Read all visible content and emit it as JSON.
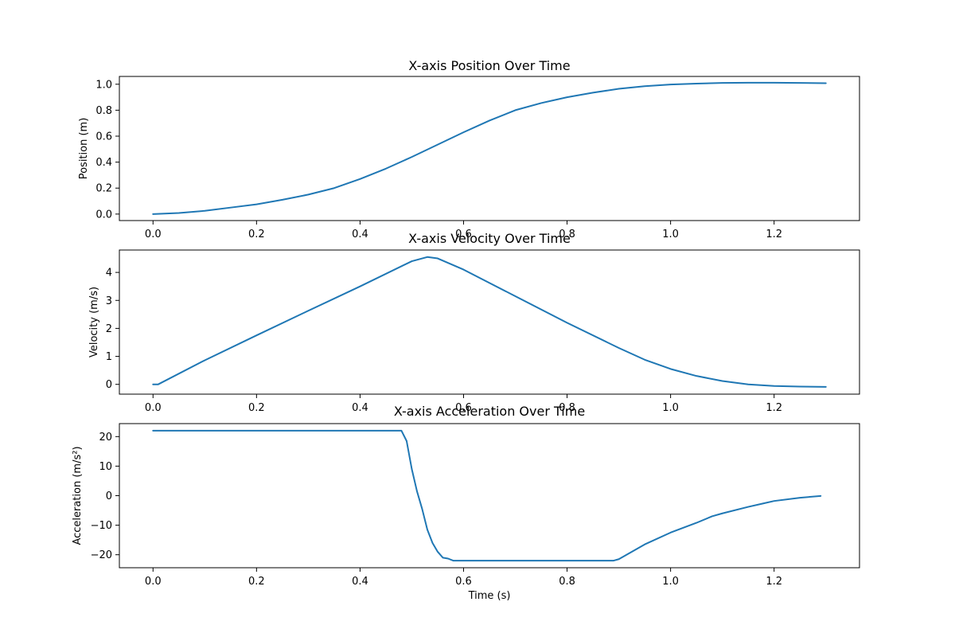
{
  "style": {
    "line_color": "#1f77b4",
    "background": "#ffffff",
    "axes_color": "#000000"
  },
  "chart_data": [
    {
      "type": "line",
      "title": "X-axis Position Over Time",
      "xlabel": "",
      "ylabel": "Position (m)",
      "xlim": [
        -0.065,
        1.365
      ],
      "ylim": [
        -0.05,
        1.06
      ],
      "xticks": [
        0.0,
        0.2,
        0.4,
        0.6,
        0.8,
        1.0,
        1.2
      ],
      "xtick_labels": [
        "0.0",
        "0.2",
        "0.4",
        "0.6",
        "0.8",
        "1.0",
        "1.2"
      ],
      "yticks": [
        0.0,
        0.2,
        0.4,
        0.6,
        0.8,
        1.0
      ],
      "ytick_labels": [
        "0.0",
        "0.2",
        "0.4",
        "0.6",
        "0.8",
        "1.0"
      ],
      "grid": false,
      "series": [
        {
          "x": [
            0.0,
            0.05,
            0.1,
            0.15,
            0.2,
            0.25,
            0.3,
            0.35,
            0.4,
            0.45,
            0.5,
            0.55,
            0.6,
            0.65,
            0.7,
            0.75,
            0.8,
            0.85,
            0.9,
            0.95,
            1.0,
            1.05,
            1.1,
            1.15,
            1.2,
            1.25,
            1.3
          ],
          "y": [
            0.0,
            0.008,
            0.025,
            0.05,
            0.075,
            0.11,
            0.15,
            0.2,
            0.27,
            0.35,
            0.44,
            0.535,
            0.63,
            0.72,
            0.8,
            0.855,
            0.9,
            0.935,
            0.965,
            0.985,
            0.998,
            1.005,
            1.01,
            1.012,
            1.012,
            1.01,
            1.008
          ]
        }
      ]
    },
    {
      "type": "line",
      "title": "X-axis Velocity Over Time",
      "xlabel": "",
      "ylabel": "Velocity (m/s)",
      "xlim": [
        -0.065,
        1.365
      ],
      "ylim": [
        -0.35,
        4.8
      ],
      "xticks": [
        0.0,
        0.2,
        0.4,
        0.6,
        0.8,
        1.0,
        1.2
      ],
      "xtick_labels": [
        "0.0",
        "0.2",
        "0.4",
        "0.6",
        "0.8",
        "1.0",
        "1.2"
      ],
      "yticks": [
        0,
        1,
        2,
        3,
        4
      ],
      "ytick_labels": [
        "0",
        "1",
        "2",
        "3",
        "4"
      ],
      "grid": false,
      "series": [
        {
          "x": [
            0.0,
            0.01,
            0.1,
            0.2,
            0.3,
            0.4,
            0.5,
            0.53,
            0.55,
            0.6,
            0.7,
            0.8,
            0.9,
            0.95,
            1.0,
            1.05,
            1.1,
            1.15,
            1.2,
            1.25,
            1.3
          ],
          "y": [
            0.0,
            0.0,
            0.86,
            1.75,
            2.63,
            3.5,
            4.4,
            4.55,
            4.5,
            4.1,
            3.15,
            2.2,
            1.3,
            0.88,
            0.55,
            0.3,
            0.12,
            0.0,
            -0.06,
            -0.08,
            -0.09
          ]
        }
      ]
    },
    {
      "type": "line",
      "title": "X-axis Acceleration Over Time",
      "xlabel": "Time (s)",
      "ylabel": "Acceleration (m/s²)",
      "xlim": [
        -0.065,
        1.365
      ],
      "ylim": [
        -24.4,
        24.4
      ],
      "xticks": [
        0.0,
        0.2,
        0.4,
        0.6,
        0.8,
        1.0,
        1.2
      ],
      "xtick_labels": [
        "0.0",
        "0.2",
        "0.4",
        "0.6",
        "0.8",
        "1.0",
        "1.2"
      ],
      "yticks": [
        -20,
        -10,
        0,
        10,
        20
      ],
      "ytick_labels": [
        "−20",
        "−10",
        "0",
        "10",
        "20"
      ],
      "grid": false,
      "series": [
        {
          "x": [
            0.0,
            0.48,
            0.49,
            0.5,
            0.51,
            0.52,
            0.53,
            0.54,
            0.55,
            0.56,
            0.57,
            0.58,
            0.59,
            0.6,
            0.7,
            0.8,
            0.89,
            0.9,
            0.95,
            1.0,
            1.05,
            1.08,
            1.1,
            1.15,
            1.18,
            1.2,
            1.25,
            1.29
          ],
          "y": [
            22.0,
            22.0,
            18.5,
            9.0,
            1.5,
            -4.5,
            -11.5,
            -16.0,
            -19.0,
            -21.0,
            -21.3,
            -22.0,
            -22.0,
            -22.0,
            -22.0,
            -22.0,
            -22.0,
            -21.5,
            -16.5,
            -12.5,
            -9.2,
            -7.0,
            -6.0,
            -3.8,
            -2.6,
            -1.8,
            -0.7,
            -0.1
          ]
        }
      ]
    }
  ]
}
